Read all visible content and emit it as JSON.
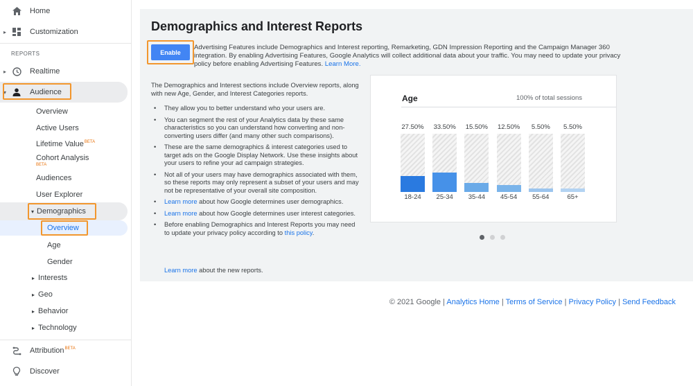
{
  "sidebar": {
    "home": "Home",
    "customization": "Customization",
    "reports_heading": "REPORTS",
    "realtime": "Realtime",
    "audience": "Audience",
    "audience_items": {
      "overview": "Overview",
      "active_users": "Active Users",
      "lifetime_value": "Lifetime Value",
      "cohort_analysis": "Cohort Analysis",
      "audiences": "Audiences",
      "user_explorer": "User Explorer",
      "demographics": "Demographics",
      "demo_overview": "Overview",
      "demo_age": "Age",
      "demo_gender": "Gender",
      "interests": "Interests",
      "geo": "Geo",
      "behavior": "Behavior",
      "technology": "Technology"
    },
    "beta": "BETA",
    "attribution": "Attribution",
    "discover": "Discover"
  },
  "main": {
    "title": "Demographics and Interest Reports",
    "enable_button": "Enable",
    "advertising_text": "Advertising Features include Demographics and Interest reporting, Remarketing, GDN Impression Reporting and the Campaign Manager 360 integration. By enabling Advertising Features, Google Analytics will collect additional data about your traffic. You may need to update your privacy policy before enabling Advertising Features.",
    "learn_more": "Learn More.",
    "intro": "The Demographics and Interest sections include Overview reports, along with new Age, Gender, and Interest Categories reports.",
    "bullets": {
      "b1": "They allow you to better understand who your users are.",
      "b2": "You can segment the rest of your Analytics data by these same characteristics so you can understand how converting and non-converting users differ (and many other such comparisons).",
      "b3": "These are the same demographics & interest categories used to target ads on the Google Display Network. Use these insights about your users to refine your ad campaign strategies.",
      "b4": "Not all of your users may have demographics associated with them, so these reports may only represent a subset of your users and may not be representative of your overall site composition.",
      "b5_link": "Learn more",
      "b5_rest": " about how Google determines user demographics.",
      "b6_link": "Learn more",
      "b6_rest": " about how Google determines user interest categories.",
      "b7_text": "Before enabling Demographics and Interest Reports you may need to update your privacy policy according to ",
      "b7_link": "this policy",
      "b7_end": "."
    },
    "final_link": "Learn more",
    "final_rest": " about the new reports."
  },
  "chart_data": {
    "type": "bar",
    "title": "Age",
    "subtitle": "100% of total sessions",
    "categories": [
      "18-24",
      "25-34",
      "35-44",
      "45-54",
      "55-64",
      "65+"
    ],
    "values": [
      27.5,
      33.5,
      15.5,
      12.5,
      5.5,
      5.5
    ],
    "value_labels": [
      "27.50%",
      "33.50%",
      "15.50%",
      "12.50%",
      "5.50%",
      "5.50%"
    ],
    "bar_colors": [
      "#2a7ae0",
      "#4691e8",
      "#6aaae8",
      "#7ab4ea",
      "#9cc5ee",
      "#b3d3f2"
    ],
    "ylim": [
      0,
      100
    ]
  },
  "carousel": {
    "pages": 3,
    "active": 0
  },
  "footer": {
    "copyright": "© 2021 Google |",
    "analytics_home": "Analytics Home",
    "terms": "Terms of Service",
    "privacy": "Privacy Policy",
    "feedback": "Send Feedback",
    "divider": "|"
  }
}
